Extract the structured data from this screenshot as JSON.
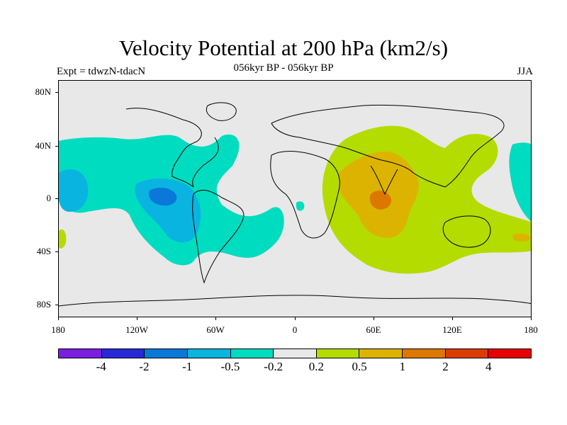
{
  "title": "Velocity Potential at 200 hPa (km2/s)",
  "subtitle": "056kyr BP - 056kyr BP",
  "left_label": "Expt = tdwzN-tdacN",
  "right_label": "JJA",
  "lat_ticks": [
    "80N",
    "40N",
    "0",
    "40S",
    "80S"
  ],
  "lon_ticks": [
    "180",
    "120W",
    "60W",
    "0",
    "60E",
    "120E",
    "180"
  ],
  "colorbar": {
    "colors": [
      "#7a1ee0",
      "#2828d8",
      "#0a78d8",
      "#0ab4e0",
      "#00dcc0",
      "#e8e8e8",
      "#b4dc00",
      "#dcb400",
      "#dc7800",
      "#dc3c00",
      "#e60000"
    ],
    "labels": [
      "-4",
      "-2",
      "-1",
      "-0.5",
      "-0.2",
      "0.2",
      "0.5",
      "1",
      "2",
      "4"
    ]
  },
  "colors": {
    "neg_weak": "#00dcc0",
    "neg_mid": "#0ab4e0",
    "neg_strong": "#0a78d8",
    "neutral": "#e8e8e8",
    "pos_weak": "#b4dc00",
    "pos_mid": "#dcb400",
    "pos_strong": "#dc7800"
  }
}
